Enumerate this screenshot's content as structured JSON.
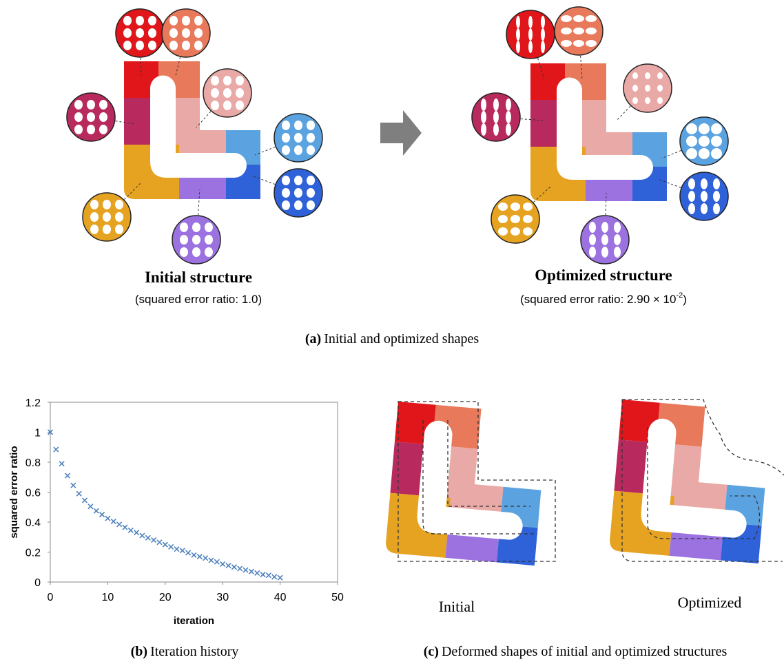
{
  "panel_a": {
    "initial_title": "Initial structure",
    "initial_note": "(squared error ratio: 1.0)",
    "optimized_title": "Optimized structure",
    "optimized_note": "(squared error ratio: 2.90 × 10",
    "optimized_exponent": "-2",
    "optimized_note_end": ")",
    "caption_label": "(a)",
    "caption": "Initial and optimized shapes"
  },
  "chart_data": {
    "type": "scatter",
    "xlabel": "iteration",
    "ylabel": "squared error ratio",
    "x": [
      0,
      1,
      2,
      3,
      4,
      5,
      6,
      7,
      8,
      9,
      10,
      11,
      12,
      13,
      14,
      15,
      16,
      17,
      18,
      19,
      20,
      21,
      22,
      23,
      24,
      25,
      26,
      27,
      28,
      29,
      30,
      31,
      32,
      33,
      34,
      35,
      36,
      37,
      38,
      39,
      40
    ],
    "values": [
      1.0,
      0.885,
      0.79,
      0.71,
      0.645,
      0.59,
      0.545,
      0.505,
      0.475,
      0.45,
      0.425,
      0.405,
      0.385,
      0.365,
      0.345,
      0.33,
      0.31,
      0.295,
      0.28,
      0.265,
      0.25,
      0.235,
      0.22,
      0.21,
      0.195,
      0.18,
      0.17,
      0.16,
      0.145,
      0.135,
      0.12,
      0.11,
      0.1,
      0.09,
      0.08,
      0.07,
      0.06,
      0.05,
      0.045,
      0.035,
      0.029
    ],
    "color": "#4f81bd",
    "xlim": [
      0,
      50
    ],
    "xticks": [
      0,
      10,
      20,
      30,
      40,
      50
    ],
    "ylim": [
      0,
      1.2
    ],
    "yticks": [
      0,
      0.2,
      0.4,
      0.6,
      0.8,
      1,
      1.2
    ],
    "grid": false
  },
  "panel_b": {
    "caption_label": "(b)",
    "caption": "Iteration history"
  },
  "panel_c": {
    "initial_label": "Initial",
    "optimized_label": "Optimized",
    "caption_label": "(c)",
    "caption": "Deformed shapes of initial and optimized structures"
  }
}
